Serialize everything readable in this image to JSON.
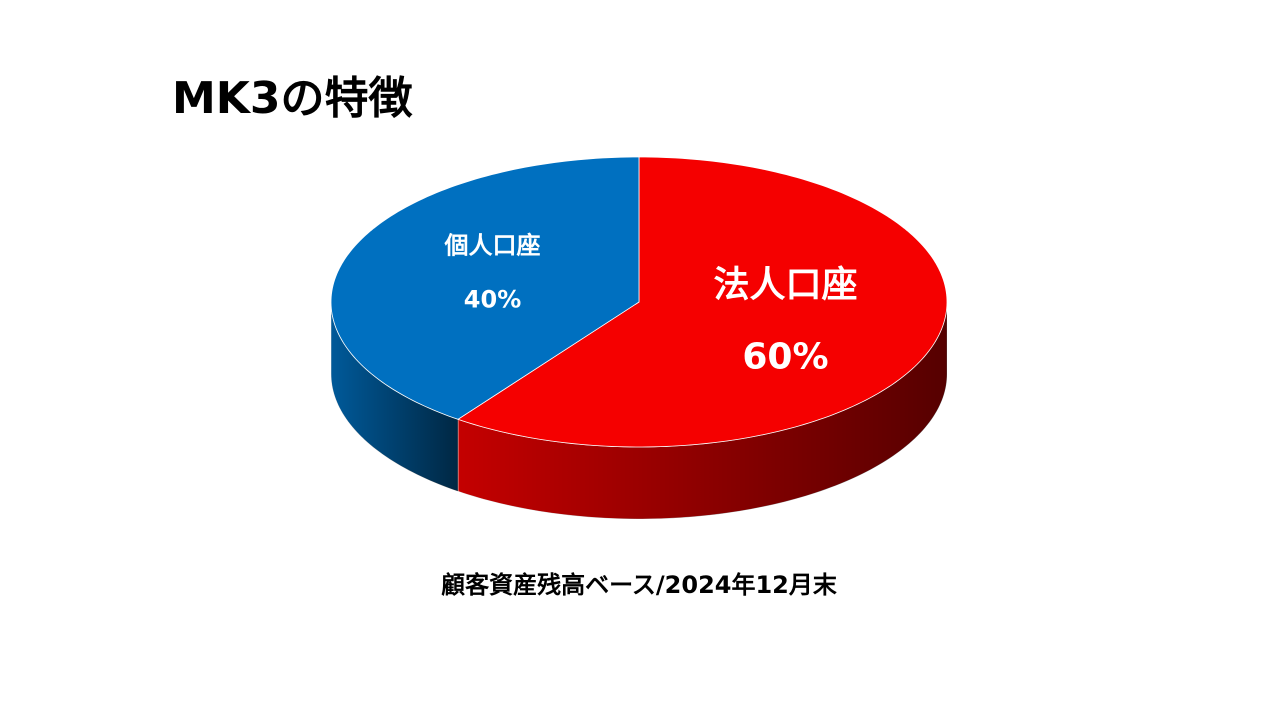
{
  "chart_data": {
    "type": "pie",
    "title": "MK3の特徴",
    "categories": [
      "個人口座",
      "法人口座"
    ],
    "values": [
      40,
      60
    ],
    "value_labels": [
      "40%",
      "60%"
    ],
    "colors": [
      "#0070c0",
      "#f50000"
    ],
    "note": "顧客資産残高ベース/2024年12月末"
  }
}
